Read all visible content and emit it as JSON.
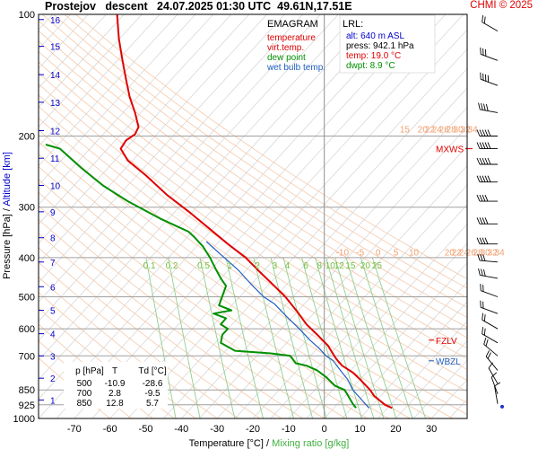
{
  "header": {
    "title": "Prostejov   descent   24.07.2025 01:30 UTC  49.61N,17.51E",
    "copyright": "CHMI © 2025"
  },
  "legend": {
    "title": "EMAGRAM",
    "items": [
      {
        "label": "temperature",
        "color": "#e00000"
      },
      {
        "label": "virt.temp.",
        "color": "#e00000"
      },
      {
        "label": "dew point",
        "color": "#009000"
      },
      {
        "label": "wet bulb temp.",
        "color": "#2060c0"
      }
    ]
  },
  "lrl": {
    "title": "LRL:",
    "lines": [
      {
        "text": "alt: 640 m ASL",
        "color": "#0000cc"
      },
      {
        "text": "press: 942.1 hPa",
        "color": "#000000"
      },
      {
        "text": "temp: 19.0 °C",
        "color": "#e00000"
      },
      {
        "text": "dwpt: 8.9 °C",
        "color": "#009000"
      }
    ]
  },
  "table": {
    "headers": [
      "p [hPa]",
      "T",
      "Td [°C]"
    ],
    "rows": [
      [
        "500",
        "-10.9",
        "-28.6"
      ],
      [
        "700",
        "2.8",
        "-9.5"
      ],
      [
        "850",
        "12.8",
        "5.7"
      ]
    ]
  },
  "levels": [
    {
      "label": "MXWS",
      "p": 215,
      "color": "#e00000"
    },
    {
      "label": "FZLV",
      "p": 640,
      "color": "#e00000"
    },
    {
      "label": "WBZL",
      "p": 720,
      "color": "#2060c0"
    }
  ],
  "chart_data": {
    "type": "line",
    "xlabel": "Temperature [°C]",
    "xlabel_sep": " /  ",
    "xlabel2": "Mixing ratio [g/kg]",
    "ylabel": "Pressure [hPa]",
    "ylabel_sep": " /  ",
    "ylabel2": "Altitude [km]",
    "x_range": [
      -80,
      40
    ],
    "y_range": [
      1000,
      100
    ],
    "y_scale": "log",
    "x_ticks": [
      -70,
      -60,
      -50,
      -40,
      -30,
      -20,
      -10,
      0,
      10,
      20,
      30
    ],
    "y_ticks": [
      100,
      200,
      300,
      400,
      500,
      600,
      700,
      850,
      925,
      1000
    ],
    "altitude_ticks_km": [
      {
        "label": "1",
        "p": 900
      },
      {
        "label": "2",
        "p": 795
      },
      {
        "label": "3",
        "p": 700
      },
      {
        "label": "4",
        "p": 617
      },
      {
        "label": "5",
        "p": 540
      },
      {
        "label": "6",
        "p": 472
      },
      {
        "label": "7",
        "p": 410
      },
      {
        "label": "8",
        "p": 357
      },
      {
        "label": "9",
        "p": 308
      },
      {
        "label": "10",
        "p": 265
      },
      {
        "label": "11",
        "p": 227
      },
      {
        "label": "12",
        "p": 194
      },
      {
        "label": "13",
        "p": 165
      },
      {
        "label": "14",
        "p": 141
      },
      {
        "label": "15",
        "p": 120
      },
      {
        "label": "16",
        "p": 103
      }
    ],
    "isotherm_labels_lower": [
      {
        "text": "-10",
        "t": -10,
        "p": 395
      },
      {
        "text": "-5",
        "t": -5,
        "p": 395
      },
      {
        "text": "0",
        "t": 0,
        "p": 395
      },
      {
        "text": "5",
        "t": 5,
        "p": 395
      },
      {
        "text": "10",
        "t": 10,
        "p": 395
      },
      {
        "text": "20",
        "t": 20,
        "p": 395
      },
      {
        "text": "22",
        "t": 22,
        "p": 395
      },
      {
        "text": "24",
        "t": 24,
        "p": 395
      },
      {
        "text": "26",
        "t": 26,
        "p": 395
      },
      {
        "text": "28",
        "t": 28,
        "p": 395
      },
      {
        "text": "30",
        "t": 30,
        "p": 395
      },
      {
        "text": "32",
        "t": 32,
        "p": 395
      },
      {
        "text": "34",
        "t": 34,
        "p": 395
      }
    ],
    "isotherm_labels_upper": [
      {
        "text": "15",
        "t": 15,
        "p": 196
      },
      {
        "text": "20",
        "t": 20,
        "p": 196
      },
      {
        "text": "22",
        "t": 22,
        "p": 196
      },
      {
        "text": "24",
        "t": 24,
        "p": 196
      },
      {
        "text": "26",
        "t": 26,
        "p": 196
      },
      {
        "text": "28",
        "t": 28,
        "p": 196
      },
      {
        "text": "30",
        "t": 30,
        "p": 196
      },
      {
        "text": "32",
        "t": 32,
        "p": 196
      },
      {
        "text": "34",
        "t": 34,
        "p": 196
      }
    ],
    "mixing_ratio_labels": [
      "0.1",
      "0.2",
      "0.5",
      "1",
      "2",
      "3",
      "4",
      "6",
      "8",
      "10",
      "12",
      "15",
      "20",
      "25"
    ],
    "series": [
      {
        "name": "temperature",
        "color": "#e00000",
        "points": [
          [
            19.0,
            942
          ],
          [
            17.0,
            925
          ],
          [
            14.0,
            880
          ],
          [
            12.8,
            850
          ],
          [
            10.0,
            800
          ],
          [
            8.0,
            770
          ],
          [
            5.0,
            740
          ],
          [
            3.5,
            715
          ],
          [
            2.8,
            700
          ],
          [
            1.0,
            660
          ],
          [
            -2.0,
            620
          ],
          [
            -5.0,
            585
          ],
          [
            -7.5,
            545
          ],
          [
            -10.9,
            500
          ],
          [
            -14.5,
            465
          ],
          [
            -18.5,
            430
          ],
          [
            -22.0,
            400
          ],
          [
            -27.0,
            370
          ],
          [
            -32.0,
            340
          ],
          [
            -37.5,
            310
          ],
          [
            -44.0,
            280
          ],
          [
            -50.0,
            250
          ],
          [
            -55.0,
            230
          ],
          [
            -57.0,
            215
          ],
          [
            -55.5,
            205
          ],
          [
            -53.0,
            198
          ],
          [
            -52.0,
            190
          ],
          [
            -53.0,
            175
          ],
          [
            -54.5,
            160
          ],
          [
            -55.5,
            145
          ],
          [
            -56.5,
            130
          ],
          [
            -57.5,
            115
          ],
          [
            -58.0,
            100
          ]
        ]
      },
      {
        "name": "dew point",
        "color": "#009000",
        "points": [
          [
            8.9,
            942
          ],
          [
            8.0,
            920
          ],
          [
            5.7,
            850
          ],
          [
            3.0,
            830
          ],
          [
            0.5,
            790
          ],
          [
            -2.0,
            760
          ],
          [
            -5.0,
            740
          ],
          [
            -8.0,
            730
          ],
          [
            -9.5,
            700
          ],
          [
            -15.0,
            690
          ],
          [
            -25.0,
            680
          ],
          [
            -29.0,
            650
          ],
          [
            -28.5,
            620
          ],
          [
            -27.0,
            600
          ],
          [
            -29.0,
            585
          ],
          [
            -27.5,
            565
          ],
          [
            -31.0,
            550
          ],
          [
            -26.0,
            540
          ],
          [
            -29.5,
            525
          ],
          [
            -28.6,
            500
          ],
          [
            -27.5,
            470
          ],
          [
            -29.0,
            450
          ],
          [
            -30.5,
            425
          ],
          [
            -32.0,
            400
          ],
          [
            -34.0,
            375
          ],
          [
            -36.5,
            355
          ],
          [
            -38.0,
            345
          ],
          [
            -46.0,
            320
          ],
          [
            -55.0,
            290
          ],
          [
            -62.0,
            265
          ],
          [
            -68.0,
            240
          ],
          [
            -74.0,
            215
          ],
          [
            -78.0,
            210
          ]
        ]
      },
      {
        "name": "wet bulb temp.",
        "color": "#2060c0",
        "points": [
          [
            12.5,
            942
          ],
          [
            10.5,
            900
          ],
          [
            8.0,
            850
          ],
          [
            6.5,
            800
          ],
          [
            4.5,
            760
          ],
          [
            2.5,
            720
          ],
          [
            0.5,
            700
          ],
          [
            -1.5,
            670
          ],
          [
            -4.0,
            640
          ],
          [
            -7.0,
            600
          ],
          [
            -10.5,
            560
          ],
          [
            -14.0,
            520
          ],
          [
            -17.0,
            500
          ],
          [
            -20.5,
            465
          ],
          [
            -24.0,
            430
          ],
          [
            -28.0,
            400
          ],
          [
            -33.0,
            365
          ]
        ]
      }
    ],
    "wind_barbs": [
      {
        "p": 110,
        "dir": 300,
        "kt": 15
      },
      {
        "p": 130,
        "dir": 290,
        "kt": 30
      },
      {
        "p": 150,
        "dir": 290,
        "kt": 35
      },
      {
        "p": 175,
        "dir": 280,
        "kt": 40
      },
      {
        "p": 200,
        "dir": 270,
        "kt": 45
      },
      {
        "p": 215,
        "dir": 270,
        "kt": 50
      },
      {
        "p": 235,
        "dir": 270,
        "kt": 45
      },
      {
        "p": 260,
        "dir": 270,
        "kt": 45
      },
      {
        "p": 290,
        "dir": 270,
        "kt": 40
      },
      {
        "p": 330,
        "dir": 270,
        "kt": 40
      },
      {
        "p": 370,
        "dir": 270,
        "kt": 35
      },
      {
        "p": 410,
        "dir": 275,
        "kt": 30
      },
      {
        "p": 450,
        "dir": 280,
        "kt": 25
      },
      {
        "p": 500,
        "dir": 290,
        "kt": 20
      },
      {
        "p": 550,
        "dir": 290,
        "kt": 20
      },
      {
        "p": 600,
        "dir": 300,
        "kt": 15
      },
      {
        "p": 650,
        "dir": 300,
        "kt": 15
      },
      {
        "p": 700,
        "dir": 310,
        "kt": 15
      },
      {
        "p": 760,
        "dir": 320,
        "kt": 15
      },
      {
        "p": 820,
        "dir": 330,
        "kt": 10
      },
      {
        "p": 870,
        "dir": 340,
        "kt": 10
      },
      {
        "p": 920,
        "dir": 350,
        "kt": 5
      }
    ]
  }
}
